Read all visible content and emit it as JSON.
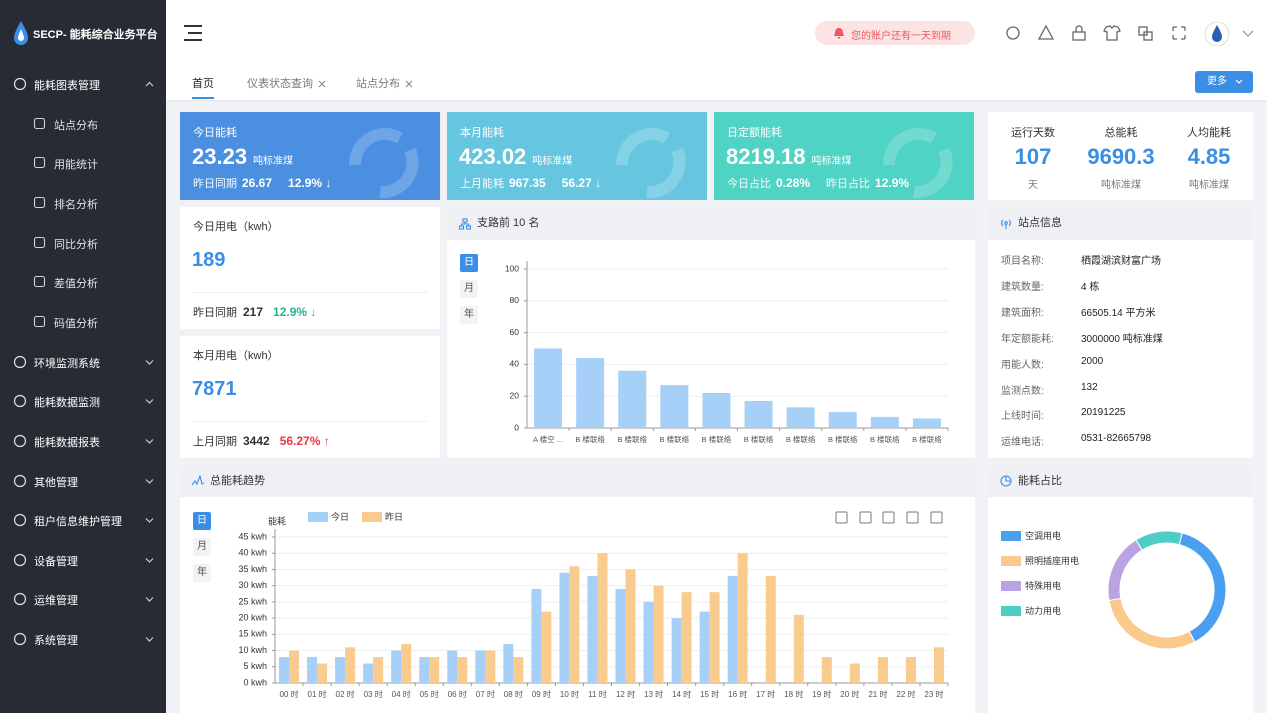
{
  "sidebar": {
    "logo": "SECP- 能耗综合业务平台",
    "menu": [
      {
        "label": "能耗图表管理",
        "expanded": true,
        "children": [
          "站点分布",
          "用能统计",
          "排名分析",
          "同比分析",
          "差值分析",
          "码值分析"
        ]
      },
      {
        "label": "环境监测系统"
      },
      {
        "label": "能耗数据监测"
      },
      {
        "label": "能耗数据报表"
      },
      {
        "label": "其他管理"
      },
      {
        "label": "租户信息维护管理"
      },
      {
        "label": "设备管理"
      },
      {
        "label": "运维管理"
      },
      {
        "label": "系统管理"
      }
    ]
  },
  "header": {
    "notice": "您的账户还有一天到期"
  },
  "tabs": {
    "items": [
      "首页",
      "仪表状态查询",
      "站点分布"
    ],
    "more": "更多"
  },
  "cards": [
    {
      "title": "今日能耗",
      "value": "23.23",
      "unit": "吨标准煤",
      "color": "#4a8fe0",
      "footer": [
        {
          "label": "昨日同期",
          "value": "26.67"
        },
        {
          "value": "12.9% ↓"
        }
      ]
    },
    {
      "title": "本月能耗",
      "value": "423.02",
      "unit": "吨标准煤",
      "color": "#67c6df",
      "footer": [
        {
          "label": "上月能耗",
          "value": "967.35"
        },
        {
          "value": "56.27 ↓"
        }
      ]
    },
    {
      "title": "日定额能耗",
      "value": "8219.18",
      "unit": "吨标准煤",
      "color": "#4fd3c4",
      "footer": [
        {
          "label": "今日占比",
          "value": "0.28%"
        },
        {
          "label": "昨日占比",
          "value": "12.9%"
        }
      ]
    }
  ],
  "stats": [
    {
      "label": "运行天数",
      "value": "107",
      "unit": "天"
    },
    {
      "label": "总能耗",
      "value": "9690.3",
      "unit": "吨标准煤"
    },
    {
      "label": "人均能耗",
      "value": "4.85",
      "unit": "吨标准煤"
    }
  ],
  "usage": [
    {
      "title": "今日用电（kwh）",
      "value": "189",
      "compare_label": "昨日同期",
      "compare_value": "217",
      "change": "12.9% ↓",
      "change_color": "#1fb58f"
    },
    {
      "title": "本月用电（kwh）",
      "value": "7871",
      "compare_label": "上月同期",
      "compare_value": "3442",
      "change": "56.27% ↑",
      "change_color": "#e8373f"
    }
  ],
  "site_info": {
    "title": "站点信息",
    "rows": [
      [
        "项目名称:",
        "栖霞湖滨财富广场"
      ],
      [
        "建筑数量:",
        "4 栋"
      ],
      [
        "建筑面积:",
        "66505.14 平方米"
      ],
      [
        "年定额能耗:",
        "3000000 吨标准煤"
      ],
      [
        "用能人数:",
        "2000"
      ],
      [
        "监测点数:",
        "132"
      ],
      [
        "上线时间:",
        "20191225"
      ],
      [
        "运维电话:",
        "0531-82665798"
      ]
    ]
  },
  "chart_data": [
    {
      "type": "bar",
      "title": "支路前 10 名",
      "periods": [
        "日",
        "月",
        "年"
      ],
      "categories": [
        "A 楼空 ...",
        "B 楼联络",
        "B 楼联络",
        "B 楼联络",
        "B 楼联络",
        "B 楼联络",
        "B 楼联络",
        "B 楼联络",
        "B 楼联络",
        "B 楼联络"
      ],
      "values": [
        50,
        44,
        36,
        27,
        22,
        17,
        13,
        10,
        7,
        6
      ],
      "color": "#a6d0f7",
      "ylim": [
        0,
        100
      ],
      "yticks": [
        0,
        20,
        40,
        60,
        80,
        100
      ],
      "grid": true
    },
    {
      "type": "bar",
      "title": "总能耗趋势",
      "periods": [
        "日",
        "月",
        "年"
      ],
      "y_label": "能耗",
      "categories": [
        "00 时",
        "01 时",
        "02 时",
        "03 时",
        "04 时",
        "05 时",
        "06 时",
        "07 时",
        "08 时",
        "09 时",
        "10 时",
        "11 时",
        "12 时",
        "13 时",
        "14 时",
        "15 时",
        "16 时",
        "17 时",
        "18 时",
        "19 时",
        "20 时",
        "21 时",
        "22 时",
        "23 时"
      ],
      "series": [
        {
          "name": "今日",
          "color": "#a6d0f7",
          "values": [
            8,
            8,
            8,
            6,
            10,
            8,
            10,
            10,
            12,
            29,
            34,
            33,
            29,
            25,
            20,
            22,
            33,
            null,
            null,
            null,
            null,
            null,
            null,
            null
          ]
        },
        {
          "name": "昨日",
          "color": "#f9cb8f",
          "values": [
            10,
            6,
            11,
            8,
            12,
            8,
            8,
            10,
            8,
            22,
            36,
            40,
            35,
            30,
            28,
            28,
            40,
            33,
            21,
            8,
            6,
            8,
            8,
            11
          ]
        }
      ],
      "ylim": [
        0,
        45
      ],
      "yticks": [
        {
          "value": 0,
          "label": "0 kwh"
        },
        {
          "value": 5,
          "label": "5 kwh"
        },
        {
          "value": 10,
          "label": "10 kwh"
        },
        {
          "value": 15,
          "label": "15 kwh"
        },
        {
          "value": 20,
          "label": "20 kwh"
        },
        {
          "value": 25,
          "label": "25 kwh"
        },
        {
          "value": 30,
          "label": "30 kwh"
        },
        {
          "value": 35,
          "label": "35 kwh"
        },
        {
          "value": 40,
          "label": "40 kwh"
        },
        {
          "value": 45,
          "label": "45 kwh"
        }
      ],
      "grid": true
    },
    {
      "type": "pie",
      "title": "能耗占比",
      "categories": [
        "空调用电",
        "照明插座用电",
        "特殊用电",
        "动力用电"
      ],
      "values": [
        38,
        30,
        19,
        13
      ],
      "colors": [
        "#4a9ff0",
        "#fbc98c",
        "#b9a3e0",
        "#4ecdc4"
      ],
      "donut": true
    }
  ]
}
